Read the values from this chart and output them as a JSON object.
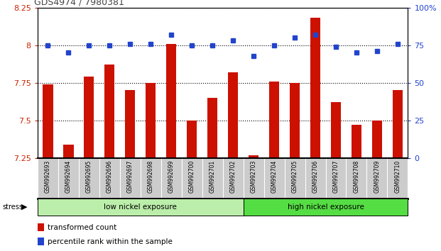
{
  "title": "GDS4974 / 7980381",
  "samples": [
    "GSM992693",
    "GSM992694",
    "GSM992695",
    "GSM992696",
    "GSM992697",
    "GSM992698",
    "GSM992699",
    "GSM992700",
    "GSM992701",
    "GSM992702",
    "GSM992703",
    "GSM992704",
    "GSM992705",
    "GSM992706",
    "GSM992707",
    "GSM992708",
    "GSM992709",
    "GSM992710"
  ],
  "red_values": [
    7.74,
    7.34,
    7.79,
    7.87,
    7.7,
    7.75,
    8.01,
    7.5,
    7.65,
    7.82,
    7.27,
    7.76,
    7.75,
    8.18,
    7.62,
    7.47,
    7.5,
    7.7
  ],
  "blue_values": [
    75,
    70,
    75,
    75,
    76,
    76,
    82,
    75,
    75,
    78,
    68,
    75,
    80,
    82,
    74,
    70,
    71,
    76
  ],
  "ylim_left": [
    7.25,
    8.25
  ],
  "ylim_right": [
    0,
    100
  ],
  "yticks_left": [
    7.25,
    7.5,
    7.75,
    8.0,
    8.25
  ],
  "yticks_right": [
    0,
    25,
    50,
    75,
    100
  ],
  "group1_label": "low nickel exposure",
  "group2_label": "high nickel exposure",
  "group1_count": 10,
  "bar_color": "#cc1100",
  "dot_color": "#2244cc",
  "stress_label": "stress",
  "legend_red": "transformed count",
  "legend_blue": "percentile rank within the sample",
  "group1_color": "#bbeeaa",
  "group2_color": "#55dd44",
  "sample_bg_color": "#cccccc",
  "title_color": "#444444",
  "axis_left_color": "#cc2200",
  "axis_right_color": "#2244cc"
}
